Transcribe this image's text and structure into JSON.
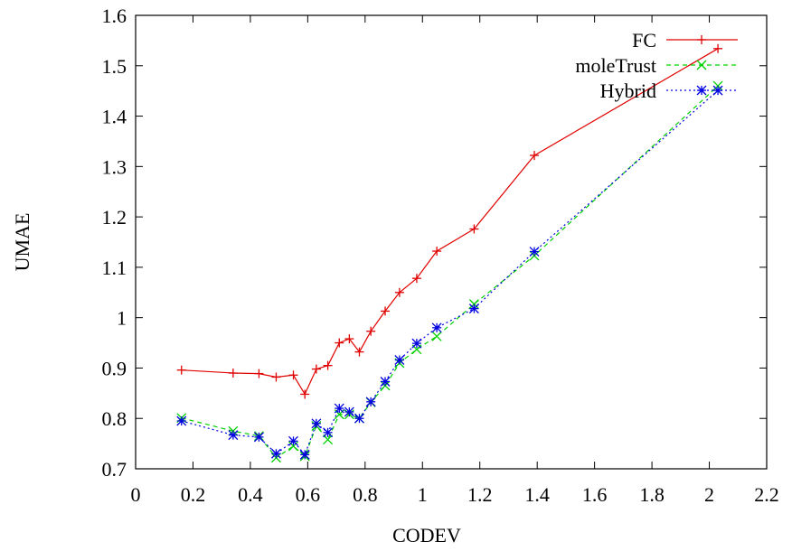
{
  "chart_data": {
    "type": "line",
    "title": "",
    "xlabel": "CODEV",
    "ylabel": "UMAE",
    "xlim": [
      0,
      2.2
    ],
    "ylim": [
      0.7,
      1.6
    ],
    "xticks": [
      "0",
      "0.2",
      "0.4",
      "0.6",
      "0.8",
      "1",
      "1.2",
      "1.4",
      "1.6",
      "1.8",
      "2",
      "2.2"
    ],
    "yticks": [
      "0.7",
      "0.8",
      "0.9",
      "1",
      "1.1",
      "1.2",
      "1.3",
      "1.4",
      "1.5",
      "1.6"
    ],
    "grid": false,
    "legend_position": "top-right",
    "series": [
      {
        "name": "FC",
        "color": "#e00000",
        "marker": "plus",
        "dash": "solid",
        "x": [
          0.16,
          0.34,
          0.43,
          0.49,
          0.55,
          0.59,
          0.63,
          0.67,
          0.71,
          0.745,
          0.78,
          0.82,
          0.87,
          0.92,
          0.98,
          1.05,
          1.18,
          1.39,
          2.03
        ],
        "y": [
          0.896,
          0.89,
          0.889,
          0.882,
          0.886,
          0.848,
          0.898,
          0.905,
          0.95,
          0.958,
          0.932,
          0.973,
          1.013,
          1.05,
          1.078,
          1.132,
          1.176,
          1.322,
          1.534
        ]
      },
      {
        "name": "moleTrust",
        "color": "#00d000",
        "marker": "x",
        "dash": "dashed",
        "x": [
          0.16,
          0.34,
          0.43,
          0.49,
          0.55,
          0.59,
          0.63,
          0.67,
          0.71,
          0.745,
          0.78,
          0.82,
          0.87,
          0.92,
          0.98,
          1.05,
          1.18,
          1.39,
          2.03
        ],
        "y": [
          0.801,
          0.775,
          0.765,
          0.722,
          0.745,
          0.725,
          0.785,
          0.758,
          0.808,
          0.808,
          0.8,
          0.832,
          0.865,
          0.91,
          0.937,
          0.963,
          1.027,
          1.123,
          1.46
        ]
      },
      {
        "name": "Hybrid",
        "color": "#0000e0",
        "marker": "star",
        "dash": "dotted",
        "x": [
          0.16,
          0.34,
          0.43,
          0.49,
          0.55,
          0.59,
          0.63,
          0.67,
          0.71,
          0.745,
          0.78,
          0.82,
          0.87,
          0.92,
          0.98,
          1.05,
          1.18,
          1.39,
          2.03
        ],
        "y": [
          0.795,
          0.767,
          0.763,
          0.73,
          0.755,
          0.728,
          0.79,
          0.772,
          0.82,
          0.813,
          0.8,
          0.833,
          0.873,
          0.916,
          0.949,
          0.98,
          1.018,
          1.131,
          1.451
        ]
      }
    ]
  }
}
